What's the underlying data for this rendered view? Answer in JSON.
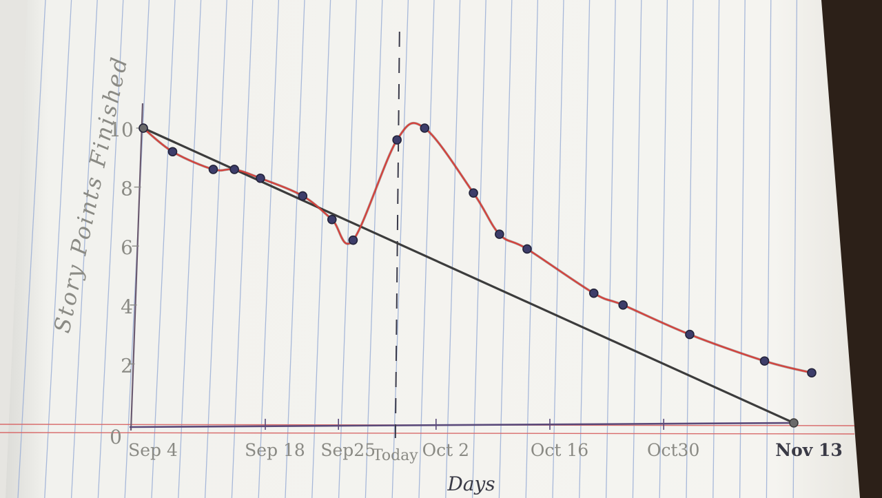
{
  "chart_data": {
    "type": "line",
    "title": "",
    "xlabel": "Days",
    "ylabel": "Story Points Finished",
    "ylim": [
      0,
      10
    ],
    "y_ticks": [
      {
        "value": 0,
        "label": "0"
      },
      {
        "value": 2,
        "label": "2"
      },
      {
        "value": 4,
        "label": "4"
      },
      {
        "value": 6,
        "label": "6"
      },
      {
        "value": 8,
        "label": "8"
      },
      {
        "value": 10,
        "label": "10"
      }
    ],
    "x_ticks": [
      {
        "date": "Sep 4",
        "day": 0,
        "label": "Sep 4"
      },
      {
        "date": "Sep 18",
        "day": 7.5,
        "label": "Sep 18"
      },
      {
        "date": "Sep 25",
        "day": 12,
        "label": "Sep25"
      },
      {
        "date": "Today",
        "day": 15.5,
        "label": "Today"
      },
      {
        "date": "Oct 2",
        "day": 18,
        "label": "Oct 2"
      },
      {
        "date": "Oct 16",
        "day": 25,
        "label": "Oct 16"
      },
      {
        "date": "Oct 30",
        "day": 32,
        "label": "Oct30"
      },
      {
        "date": "Nov 13",
        "day": 40,
        "label": "Nov 13"
      }
    ],
    "today_marker_day": 15.5,
    "series": [
      {
        "kind": "ideal",
        "color": "#3c3c3c",
        "points": [
          {
            "day": 0,
            "value": 10
          },
          {
            "day": 40,
            "value": 0
          }
        ]
      },
      {
        "kind": "actual",
        "color": "#d6403a",
        "marker_color": "#3d3d6a",
        "points": [
          {
            "day": 0,
            "value": 10
          },
          {
            "day": 1.8,
            "value": 9.2
          },
          {
            "day": 4.3,
            "value": 8.6
          },
          {
            "day": 5.6,
            "value": 8.6
          },
          {
            "day": 7.2,
            "value": 8.3
          },
          {
            "day": 9.8,
            "value": 7.7
          },
          {
            "day": 11.6,
            "value": 6.9
          },
          {
            "day": 12.9,
            "value": 6.2
          },
          {
            "day": 15.6,
            "value": 9.6
          },
          {
            "day": 17.3,
            "value": 10.0
          },
          {
            "day": 20.3,
            "value": 7.8
          },
          {
            "day": 21.9,
            "value": 6.4
          },
          {
            "day": 23.6,
            "value": 5.9
          },
          {
            "day": 27.7,
            "value": 4.4
          },
          {
            "day": 29.5,
            "value": 4.0
          },
          {
            "day": 33.6,
            "value": 3.0
          },
          {
            "day": 38.2,
            "value": 2.1
          },
          {
            "day": 41.1,
            "value": 1.7
          }
        ]
      }
    ],
    "grid": "vertical notebook ruling",
    "legend": "none"
  },
  "colors": {
    "paper": "#f3f2ee",
    "ruling": "#9aaed6",
    "margin_red": "#d86a6a",
    "axis": "#5a4a6a",
    "pencil": "#8a8a84"
  }
}
